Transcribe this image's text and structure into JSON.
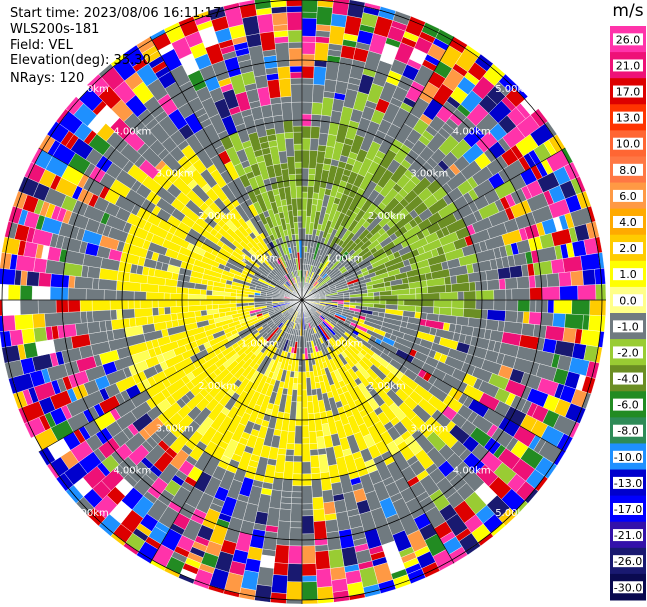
{
  "header": {
    "start_time": "Start time: 2023/08/06 16:11:17",
    "device": "WLS200s-181",
    "field": "Field: VEL",
    "elevation": "Elevation(deg): 35.30",
    "nrays": "NRays: 120"
  },
  "chart_data": {
    "type": "heatmap",
    "projection": "polar-ppi",
    "field": "VEL",
    "n_rays": 120,
    "elevation_deg": 35.3,
    "unit": "m/s",
    "vmin": -30,
    "vmax": 30,
    "range_rings_km": [
      1,
      2,
      3,
      4,
      5
    ],
    "ring_labels": [
      "1.00km",
      "2.00km",
      "3.00km",
      "4.00km",
      "5.00km"
    ],
    "colorbar_ticks": [
      "26.0",
      "21.0",
      "17.0",
      "13.0",
      "10.0",
      "8.0",
      "6.0",
      "4.0",
      "2.0",
      "1.0",
      "0.0",
      "-1.0",
      "-2.0",
      "-4.0",
      "-6.0",
      "-8.0",
      "-10.0",
      "-13.0",
      "-17.0",
      "-21.0",
      "-26.0",
      "-30.0"
    ],
    "colorbar_colors": [
      "#ff33aa",
      "#ee1177",
      "#dd0000",
      "#ff3300",
      "#ff6633",
      "#ff7744",
      "#ff9944",
      "#ffaa00",
      "#ffcc00",
      "#ffff00",
      "#ffff88",
      "#707a80",
      "#99cc33",
      "#6b8e23",
      "#228b22",
      "#2e8b57",
      "#1e90ff",
      "#0000cd",
      "#0000ff",
      "#3311aa",
      "#191970",
      "#0a0a50"
    ],
    "velocity_pattern": {
      "near_positive_sector_deg": [
        140,
        330
      ],
      "near_negative_sector_deg": [
        300,
        120
      ],
      "clear_radius_km": 3.5
    }
  }
}
